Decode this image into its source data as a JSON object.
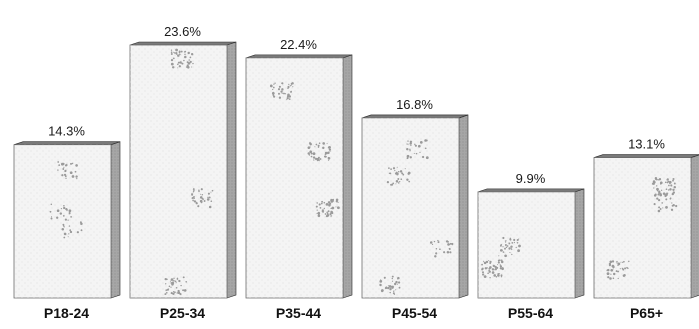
{
  "chart_data": {
    "type": "bar",
    "style": "3d-box",
    "categories": [
      "P18-24",
      "P25-34",
      "P35-44",
      "P45-54",
      "P55-64",
      "P65+"
    ],
    "values": [
      14.3,
      23.6,
      22.4,
      16.8,
      9.9,
      13.1
    ],
    "value_labels": [
      "14.3%",
      "23.6%",
      "22.4%",
      "16.8%",
      "9.9%",
      "13.1%"
    ],
    "unit": "%",
    "title": "",
    "xlabel": "",
    "ylabel": "",
    "ylim": [
      0,
      25
    ],
    "grid": false,
    "legend": "none",
    "colors": {
      "bar_face": "#f4f4f4",
      "bar_side": "#a6a6a6",
      "bar_top": "#7a7a7a",
      "bar_edge": "#2a2a2a",
      "speckle": "#9a9a9a"
    }
  }
}
